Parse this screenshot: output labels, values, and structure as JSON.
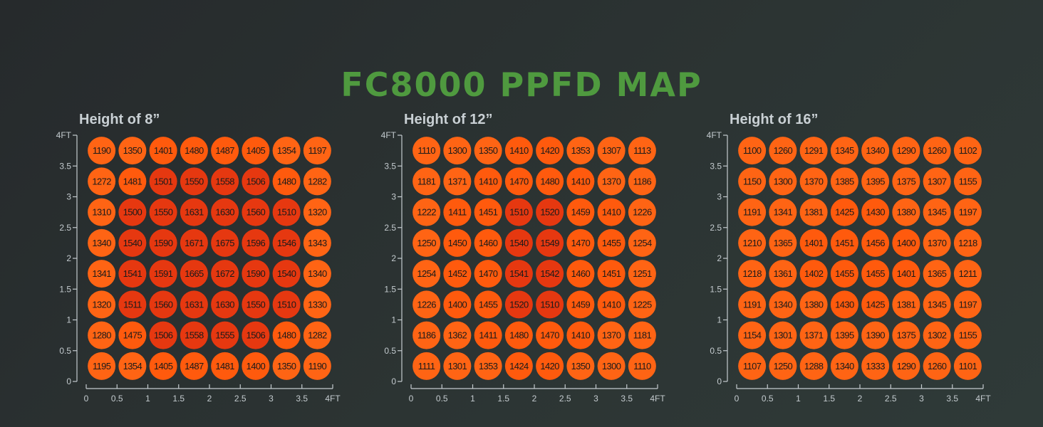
{
  "title": "FC8000 PPFD MAP",
  "colors": {
    "title": "#4f9a3f",
    "low": "#ff6414",
    "mid": "#ff5a0d",
    "high": "#e63810",
    "axis": "#c4cbcf"
  },
  "chart_data": [
    {
      "type": "heatmap",
      "title": "Height of 8”",
      "x_ticks": [
        "0",
        "0.5",
        "1",
        "1.5",
        "2",
        "2.5",
        "3",
        "3.5",
        "4FT"
      ],
      "y_ticks": [
        "0",
        "0.5",
        "1",
        "1.5",
        "2",
        "2.5",
        "3",
        "3.5",
        "4FT"
      ],
      "xlim": [
        0,
        4
      ],
      "ylim": [
        0,
        4
      ],
      "rows": [
        [
          1190,
          1350,
          1401,
          1480,
          1487,
          1405,
          1354,
          1197
        ],
        [
          1272,
          1481,
          1501,
          1550,
          1558,
          1506,
          1480,
          1282
        ],
        [
          1310,
          1500,
          1550,
          1631,
          1630,
          1560,
          1510,
          1320
        ],
        [
          1340,
          1540,
          1590,
          1671,
          1675,
          1596,
          1546,
          1343
        ],
        [
          1341,
          1541,
          1591,
          1665,
          1672,
          1590,
          1540,
          1340
        ],
        [
          1320,
          1511,
          1560,
          1631,
          1630,
          1550,
          1510,
          1330
        ],
        [
          1280,
          1475,
          1506,
          1558,
          1555,
          1506,
          1480,
          1282
        ],
        [
          1195,
          1354,
          1405,
          1487,
          1481,
          1400,
          1350,
          1190
        ]
      ]
    },
    {
      "type": "heatmap",
      "title": "Height of 12”",
      "x_ticks": [
        "0",
        "0.5",
        "1",
        "1.5",
        "2",
        "2.5",
        "3",
        "3.5",
        "4FT"
      ],
      "y_ticks": [
        "0",
        "0.5",
        "1",
        "1.5",
        "2",
        "2.5",
        "3",
        "3.5",
        "4FT"
      ],
      "xlim": [
        0,
        4
      ],
      "ylim": [
        0,
        4
      ],
      "rows": [
        [
          1110,
          1300,
          1350,
          1410,
          1420,
          1353,
          1307,
          1113
        ],
        [
          1181,
          1371,
          1410,
          1470,
          1480,
          1410,
          1370,
          1186
        ],
        [
          1222,
          1411,
          1451,
          1510,
          1520,
          1459,
          1410,
          1226
        ],
        [
          1250,
          1450,
          1460,
          1540,
          1549,
          1470,
          1455,
          1254
        ],
        [
          1254,
          1452,
          1470,
          1541,
          1542,
          1460,
          1451,
          1251
        ],
        [
          1226,
          1400,
          1455,
          1520,
          1510,
          1459,
          1410,
          1225
        ],
        [
          1186,
          1362,
          1411,
          1480,
          1470,
          1410,
          1370,
          1181
        ],
        [
          1111,
          1301,
          1353,
          1424,
          1420,
          1350,
          1300,
          1110
        ]
      ]
    },
    {
      "type": "heatmap",
      "title": "Height of 16”",
      "x_ticks": [
        "0",
        "0.5",
        "1",
        "1.5",
        "2",
        "2.5",
        "3",
        "3.5",
        "4FT"
      ],
      "y_ticks": [
        "0",
        "0.5",
        "1",
        "1.5",
        "2",
        "2.5",
        "3",
        "3.5",
        "4FT"
      ],
      "xlim": [
        0,
        4
      ],
      "ylim": [
        0,
        4
      ],
      "rows": [
        [
          1100,
          1260,
          1291,
          1345,
          1340,
          1290,
          1260,
          1102
        ],
        [
          1150,
          1300,
          1370,
          1385,
          1395,
          1375,
          1307,
          1155
        ],
        [
          1191,
          1341,
          1381,
          1425,
          1430,
          1380,
          1345,
          1197
        ],
        [
          1210,
          1365,
          1401,
          1451,
          1456,
          1400,
          1370,
          1218
        ],
        [
          1218,
          1361,
          1402,
          1455,
          1455,
          1401,
          1365,
          1211
        ],
        [
          1191,
          1340,
          1380,
          1430,
          1425,
          1381,
          1345,
          1197
        ],
        [
          1154,
          1301,
          1371,
          1395,
          1390,
          1375,
          1302,
          1155
        ],
        [
          1107,
          1250,
          1288,
          1340,
          1333,
          1290,
          1260,
          1101
        ]
      ]
    }
  ]
}
